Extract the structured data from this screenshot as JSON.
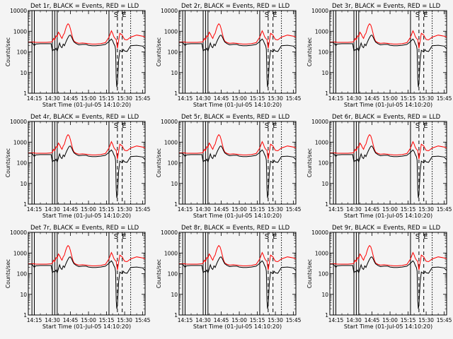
{
  "chart_data": {
    "type": "line",
    "layout": "3x3 grid",
    "shared": {
      "title_suffix": "BLACK = Events, RED = LLD",
      "xlabel": "Start Time (01-Jul-05 14:10:20)",
      "ylabel": "Counts/sec",
      "x_ticks": [
        "14:15",
        "14:30",
        "14:45",
        "15:00",
        "15:15",
        "15:30",
        "15:45"
      ],
      "x_tick_minutes": [
        15,
        30,
        45,
        60,
        75,
        90,
        105
      ],
      "xlim_minutes": [
        10,
        107
      ],
      "y_scale": "log",
      "ylim": [
        1,
        10000
      ],
      "y_ticks": [
        "1",
        "10",
        "100",
        "1000",
        "10000"
      ],
      "y_tick_values": [
        1,
        10,
        100,
        1000,
        10000
      ],
      "series_colors": {
        "events": "#000000",
        "lld": "#ff0000"
      },
      "marker_labels": {
        "s": "S",
        "e": "E"
      },
      "solid_markers_minutes": [
        13,
        15,
        30,
        32,
        34,
        77
      ],
      "dashed_markers_minutes": [
        84,
        88
      ],
      "dotted_markers_minutes": [
        95
      ],
      "s_marker_minutes": 84,
      "e_marker_minutes": 89,
      "t_minutes": [
        10,
        13,
        15,
        16,
        20,
        25,
        29,
        30,
        31,
        32,
        33,
        34,
        35,
        36,
        37,
        38,
        39,
        40,
        41,
        42,
        43,
        44,
        45,
        46,
        47,
        48,
        50,
        52,
        55,
        58,
        60,
        63,
        66,
        70,
        74,
        77,
        79,
        80,
        81,
        82,
        82.5,
        83,
        83.5,
        84,
        85,
        86,
        88,
        89,
        90,
        92,
        95,
        100,
        105,
        107
      ],
      "events": [
        290,
        290,
        200,
        240,
        250,
        250,
        250,
        110,
        130,
        120,
        150,
        110,
        170,
        270,
        180,
        160,
        240,
        200,
        280,
        380,
        500,
        620,
        650,
        520,
        380,
        300,
        250,
        220,
        230,
        230,
        210,
        200,
        200,
        210,
        230,
        320,
        420,
        350,
        250,
        190,
        130,
        5,
        2,
        3,
        40,
        120,
        100,
        130,
        110,
        105,
        200,
        210,
        190,
        140
      ],
      "lld": [
        300,
        300,
        300,
        290,
        290,
        290,
        300,
        320,
        450,
        380,
        600,
        550,
        900,
        750,
        550,
        450,
        650,
        800,
        1300,
        1900,
        2300,
        2000,
        1300,
        750,
        450,
        330,
        280,
        260,
        270,
        260,
        250,
        240,
        240,
        250,
        280,
        520,
        1050,
        800,
        550,
        450,
        420,
        400,
        250,
        150,
        350,
        800,
        650,
        500,
        400,
        380,
        520,
        650,
        580,
        520
      ]
    },
    "panels": [
      {
        "title": "Det 1r"
      },
      {
        "title": "Det 2r"
      },
      {
        "title": "Det 3r"
      },
      {
        "title": "Det 4r"
      },
      {
        "title": "Det 5r"
      },
      {
        "title": "Det 6r"
      },
      {
        "title": "Det 7r"
      },
      {
        "title": "Det 8r"
      },
      {
        "title": "Det 9r"
      }
    ]
  }
}
